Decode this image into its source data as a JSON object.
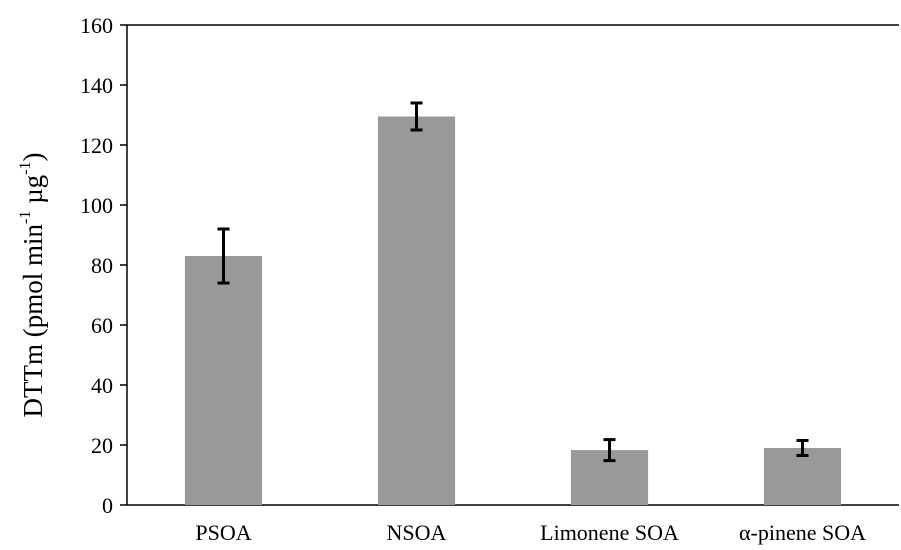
{
  "chart_data": {
    "type": "bar",
    "categories": [
      "PSOA",
      "NSOA",
      "Limonene SOA",
      "α-pinene SOA"
    ],
    "values": [
      83,
      129.5,
      18.3,
      19
    ],
    "errors": [
      9,
      4.5,
      3.5,
      2.5
    ],
    "title": "",
    "xlabel": "",
    "ylabel": {
      "prefix": "DTTm (pmol min",
      "sup1": "-1",
      "middle": " µg",
      "sup2": "-1",
      "suffix": ")"
    },
    "ylim": [
      0,
      160
    ],
    "yticks": [
      0,
      20,
      40,
      60,
      80,
      100,
      120,
      140,
      160
    ],
    "grid": false,
    "legend": "none",
    "bar_color": "#999999",
    "error_color": "#000000",
    "axis_color": "#000000"
  }
}
